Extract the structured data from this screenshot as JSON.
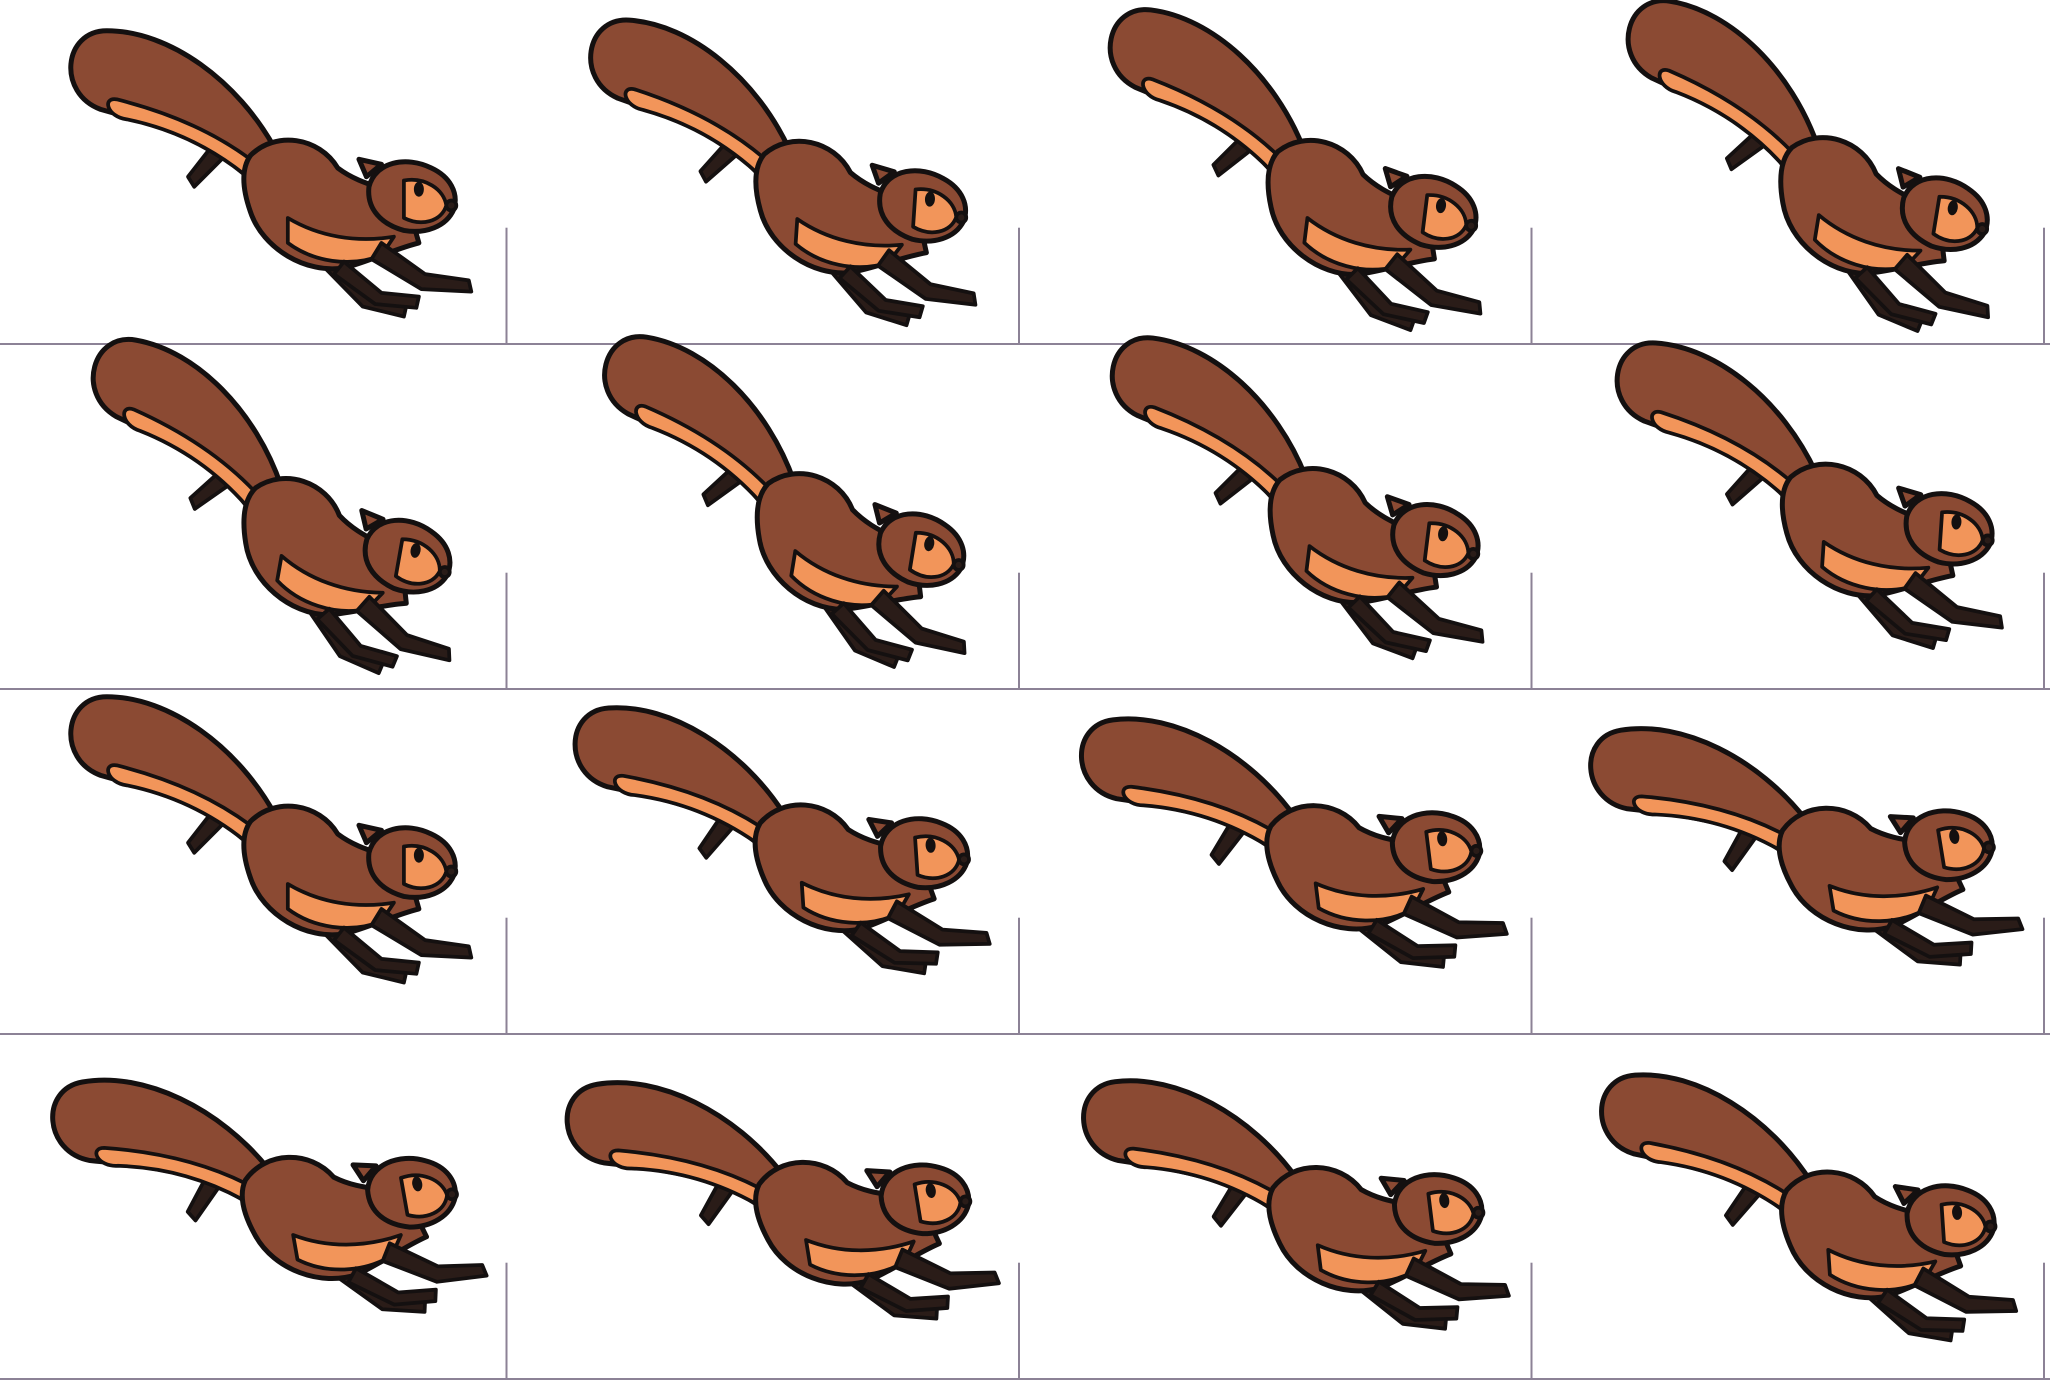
{
  "sprite_sheet": {
    "rows": 4,
    "columns": 4
  }
}
